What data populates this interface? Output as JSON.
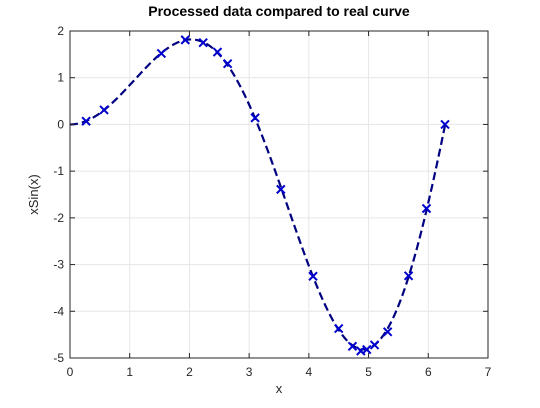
{
  "chart_data": {
    "type": "line",
    "title": "Processed data compared to real curve",
    "xlabel": "x",
    "ylabel": "xSin(x)",
    "xlim": [
      0,
      7
    ],
    "ylim": [
      -5,
      2
    ],
    "xticks": [
      0,
      1,
      2,
      3,
      4,
      5,
      6,
      7
    ],
    "yticks": [
      -5,
      -4,
      -3,
      -2,
      -1,
      0,
      1,
      2
    ],
    "grid": true,
    "legend": "none",
    "series": [
      {
        "style": "dashed-line",
        "color": "#000080",
        "curve": "x*sin(x)",
        "x_range": [
          0,
          6.283
        ]
      },
      {
        "style": "x-markers",
        "color": "#0000cc",
        "x": [
          0.27,
          0.57,
          1.53,
          1.93,
          2.23,
          2.47,
          2.64,
          3.1,
          3.53,
          4.07,
          4.5,
          4.73,
          4.87,
          4.97,
          5.1,
          5.32,
          5.67,
          5.97,
          6.28
        ],
        "y": [
          0.07,
          0.31,
          1.52,
          1.81,
          1.75,
          1.55,
          1.3,
          0.14,
          -1.39,
          -3.25,
          -4.37,
          -4.75,
          -4.85,
          -4.82,
          -4.72,
          -4.44,
          -3.24,
          -1.8,
          0.0
        ]
      }
    ],
    "colors": {
      "line": "#000080",
      "markers": "#0000cc",
      "grid": "#e6e6e6",
      "axis": "#262626"
    }
  }
}
